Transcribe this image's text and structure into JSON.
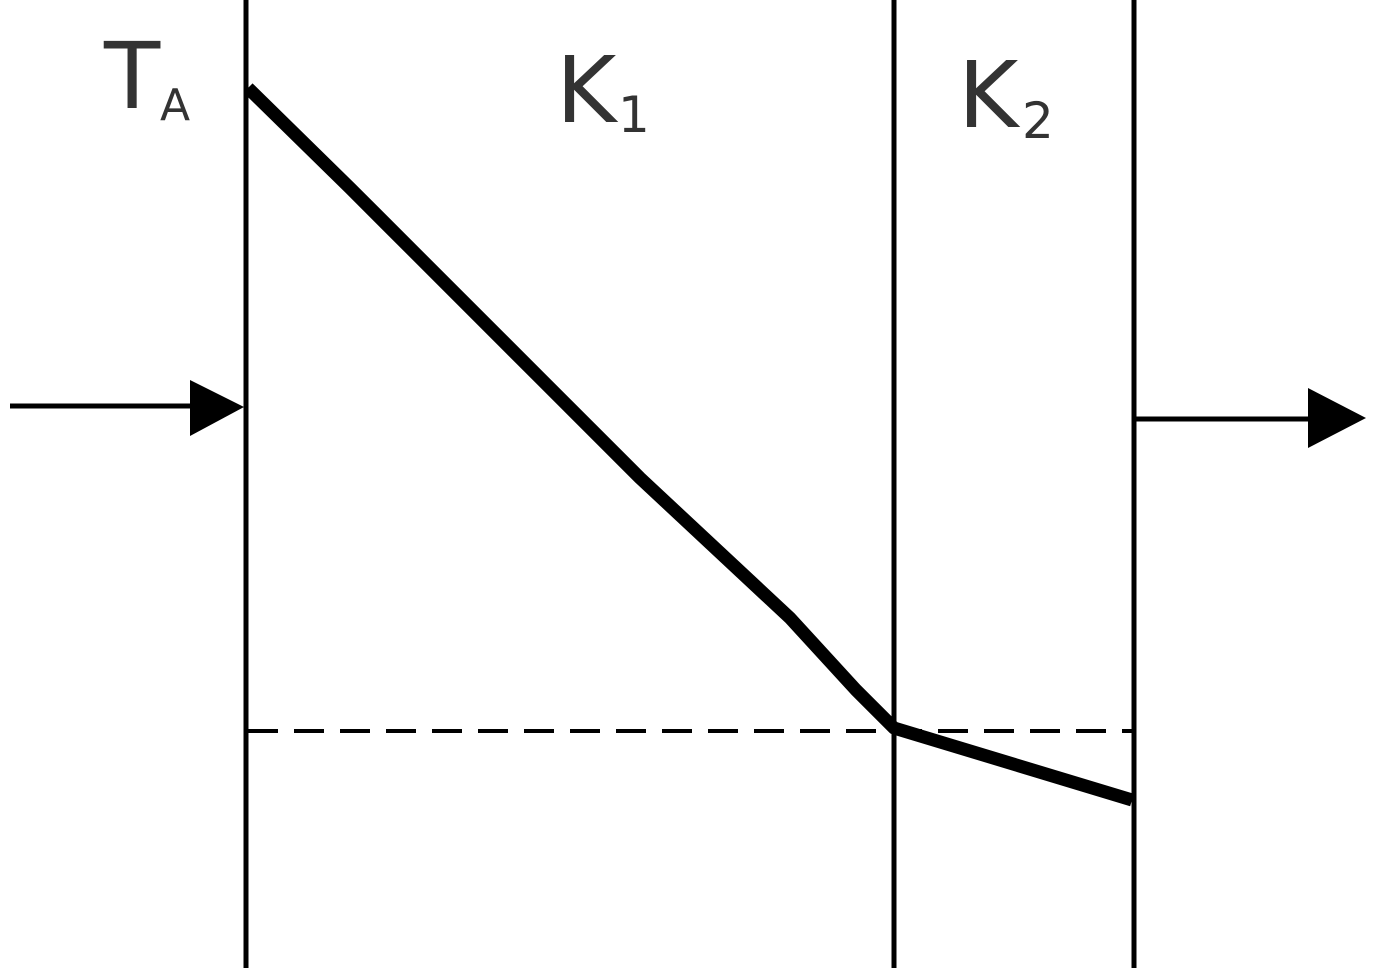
{
  "labels": {
    "temperature": {
      "main": "T",
      "sub": "A"
    },
    "layer1": {
      "main": "K",
      "sub": "1"
    },
    "layer2": {
      "main": "K",
      "sub": "2"
    }
  }
}
